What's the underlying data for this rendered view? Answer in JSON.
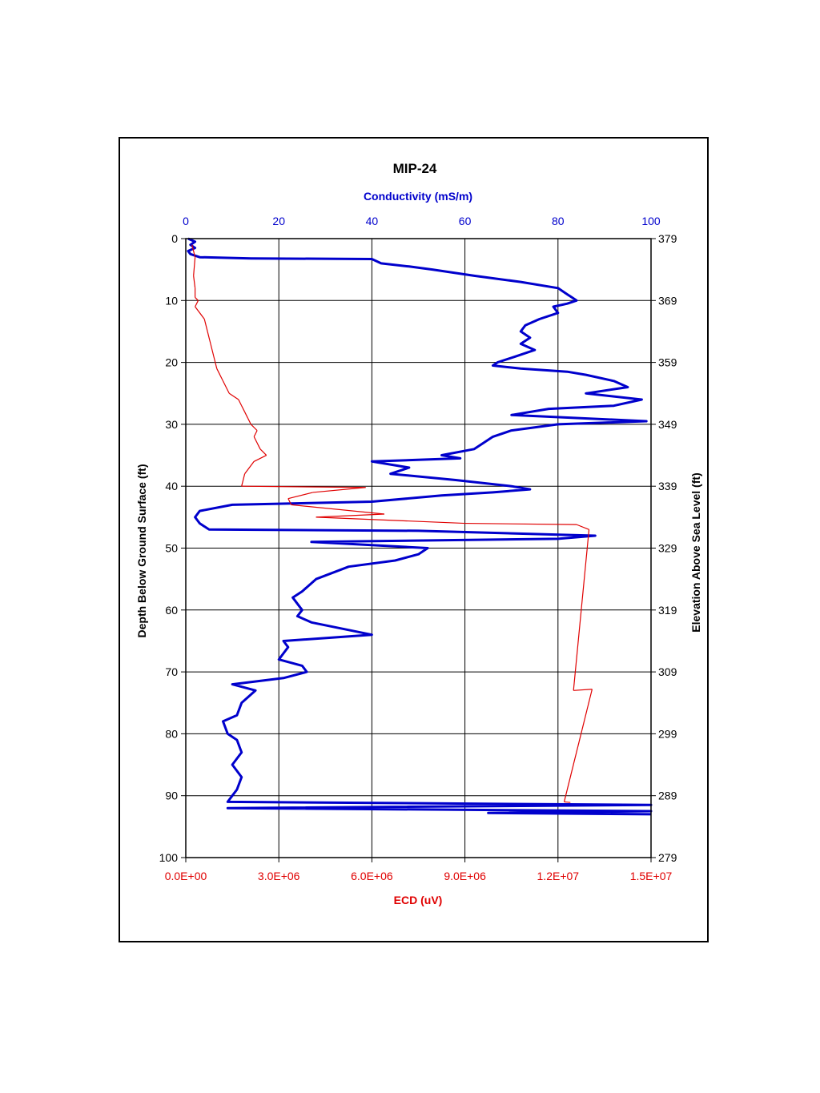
{
  "chart_data": {
    "type": "line",
    "title": "MIP-24",
    "orientation": "depth-profile (x horizontal, depth vertical downward)",
    "x_top": {
      "label": "Conductivity (mS/m)",
      "range": [
        0,
        100
      ],
      "ticks": [
        "0",
        "20",
        "40",
        "60",
        "80",
        "100"
      ],
      "color": "#0000cc"
    },
    "x_bottom": {
      "label": "ECD (uV)",
      "range": [
        0,
        15000000
      ],
      "ticks": [
        "0.0E+00",
        "3.0E+06",
        "6.0E+06",
        "9.0E+06",
        "1.2E+07",
        "1.5E+07"
      ],
      "color": "#e00000"
    },
    "y_left": {
      "label": "Depth Below Ground Surface (ft)",
      "range": [
        0,
        100
      ],
      "ticks": [
        "0",
        "10",
        "20",
        "30",
        "40",
        "50",
        "60",
        "70",
        "80",
        "90",
        "100"
      ]
    },
    "y_right": {
      "label": "Elevation Above Sea Level (ft)",
      "ticks": [
        "379",
        "369",
        "359",
        "349",
        "339",
        "329",
        "319",
        "309",
        "299",
        "289",
        "279"
      ]
    },
    "grid": true,
    "series": [
      {
        "name": "Conductivity (mS/m)",
        "color": "#0000cc",
        "axis": "top",
        "points": [
          [
            0.5,
            0
          ],
          [
            2,
            0.5
          ],
          [
            1,
            1
          ],
          [
            2,
            1.5
          ],
          [
            0.5,
            2
          ],
          [
            1,
            2.5
          ],
          [
            3,
            3
          ],
          [
            14,
            3.2
          ],
          [
            40,
            3.3
          ],
          [
            42,
            4
          ],
          [
            48,
            4.5
          ],
          [
            53,
            5
          ],
          [
            62,
            6
          ],
          [
            72,
            7
          ],
          [
            80,
            8
          ],
          [
            82,
            9
          ],
          [
            83,
            9.5
          ],
          [
            84,
            10
          ],
          [
            82,
            10.5
          ],
          [
            79,
            11
          ],
          [
            80,
            12
          ],
          [
            76,
            13
          ],
          [
            73,
            14
          ],
          [
            72,
            15
          ],
          [
            74,
            16
          ],
          [
            72,
            17
          ],
          [
            75,
            18
          ],
          [
            71,
            19
          ],
          [
            67,
            20
          ],
          [
            66,
            20.5
          ],
          [
            72,
            21
          ],
          [
            82,
            21.5
          ],
          [
            86,
            22
          ],
          [
            92,
            23
          ],
          [
            95,
            24
          ],
          [
            86,
            25
          ],
          [
            98,
            26
          ],
          [
            92,
            27
          ],
          [
            78,
            27.5
          ],
          [
            70,
            28.5
          ],
          [
            99,
            29.5
          ],
          [
            80,
            30
          ],
          [
            70,
            31
          ],
          [
            66,
            32
          ],
          [
            64,
            33
          ],
          [
            62,
            34
          ],
          [
            55,
            35
          ],
          [
            59,
            35.5
          ],
          [
            40,
            36
          ],
          [
            48,
            37
          ],
          [
            44,
            38
          ],
          [
            58,
            39
          ],
          [
            70,
            40
          ],
          [
            74,
            40.5
          ],
          [
            66,
            41
          ],
          [
            55,
            41.5
          ],
          [
            40,
            42.5
          ],
          [
            10,
            43
          ],
          [
            3,
            44
          ],
          [
            2,
            45
          ],
          [
            3,
            46
          ],
          [
            5,
            47
          ],
          [
            50,
            47.2
          ],
          [
            88,
            48
          ],
          [
            80,
            48.5
          ],
          [
            27,
            49
          ],
          [
            52,
            50
          ],
          [
            50,
            51
          ],
          [
            45,
            52
          ],
          [
            35,
            53
          ],
          [
            28,
            55
          ],
          [
            25,
            57
          ],
          [
            23,
            58
          ],
          [
            25,
            60
          ],
          [
            24,
            61
          ],
          [
            27,
            62
          ],
          [
            40,
            64
          ],
          [
            21,
            65
          ],
          [
            22,
            66
          ],
          [
            20,
            68
          ],
          [
            25,
            69
          ],
          [
            26,
            70
          ],
          [
            21,
            71
          ],
          [
            10,
            72
          ],
          [
            15,
            73
          ],
          [
            12,
            75
          ],
          [
            11,
            77
          ],
          [
            8,
            78
          ],
          [
            9,
            80
          ],
          [
            11,
            81
          ],
          [
            12,
            83
          ],
          [
            10,
            85
          ],
          [
            12,
            87
          ],
          [
            11,
            89
          ],
          [
            10,
            90
          ],
          [
            9,
            91
          ],
          [
            100,
            91.5
          ],
          [
            9,
            92
          ],
          [
            100,
            92.5
          ],
          [
            65,
            92.8
          ],
          [
            100,
            93
          ]
        ]
      },
      {
        "name": "ECD (uV)",
        "color": "#e00000",
        "axis": "bottom",
        "points": [
          [
            200000,
            1
          ],
          [
            300000,
            3
          ],
          [
            250000,
            6
          ],
          [
            300000,
            8
          ],
          [
            300000,
            9.5
          ],
          [
            400000,
            10
          ],
          [
            300000,
            11
          ],
          [
            600000,
            13
          ],
          [
            700000,
            15
          ],
          [
            800000,
            17
          ],
          [
            900000,
            19
          ],
          [
            1000000,
            21
          ],
          [
            1200000,
            23
          ],
          [
            1400000,
            25
          ],
          [
            1700000,
            26
          ],
          [
            1800000,
            27
          ],
          [
            1900000,
            28
          ],
          [
            2000000,
            29
          ],
          [
            2100000,
            30
          ],
          [
            2300000,
            31
          ],
          [
            2200000,
            32
          ],
          [
            2300000,
            33
          ],
          [
            2400000,
            34
          ],
          [
            2600000,
            35
          ],
          [
            2200000,
            36
          ],
          [
            1900000,
            38
          ],
          [
            1800000,
            40
          ],
          [
            5800000,
            40.2
          ],
          [
            4100000,
            41
          ],
          [
            3300000,
            42
          ],
          [
            3400000,
            43
          ],
          [
            6400000,
            44.5
          ],
          [
            4200000,
            45
          ],
          [
            9000000,
            46
          ],
          [
            12600000,
            46.2
          ],
          [
            13000000,
            47
          ],
          [
            12500000,
            73
          ],
          [
            13100000,
            72.8
          ],
          [
            12200000,
            91
          ],
          [
            12400000,
            91.1
          ]
        ]
      }
    ]
  }
}
